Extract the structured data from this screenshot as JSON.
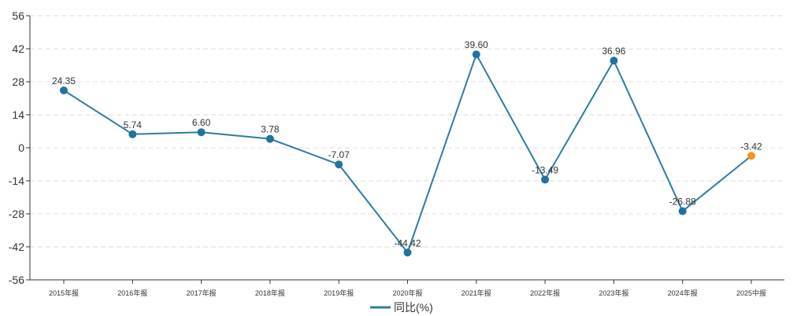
{
  "chart_data": {
    "type": "line",
    "categories": [
      "2015年报",
      "2016年报",
      "2017年报",
      "2018年报",
      "2019年报",
      "2020年报",
      "2021年报",
      "2022年报",
      "2023年报",
      "2024年报",
      "2025中报"
    ],
    "series": [
      {
        "name": "同比(%)",
        "values": [
          24.35,
          5.74,
          6.6,
          3.78,
          -7.07,
          -44.42,
          39.6,
          -13.49,
          36.96,
          -26.88,
          -3.42
        ],
        "labels": [
          "24.35",
          "5.74",
          "6.60",
          "3.78",
          "-7.07",
          "-44.42",
          "39.60",
          "-13.49",
          "36.96",
          "-26.88",
          "-3.42"
        ]
      }
    ],
    "yticks": [
      "56",
      "42",
      "28",
      "14",
      "0",
      "-14",
      "-28",
      "-42",
      "-56"
    ],
    "ylim": [
      -56,
      56
    ],
    "grid": true,
    "legend_position": "bottom-center",
    "colors": {
      "line": "#2e7ba3",
      "point": "#2271a0",
      "last_point": "#f7931e",
      "grid": "#dddddd",
      "axis": "#333333"
    }
  }
}
